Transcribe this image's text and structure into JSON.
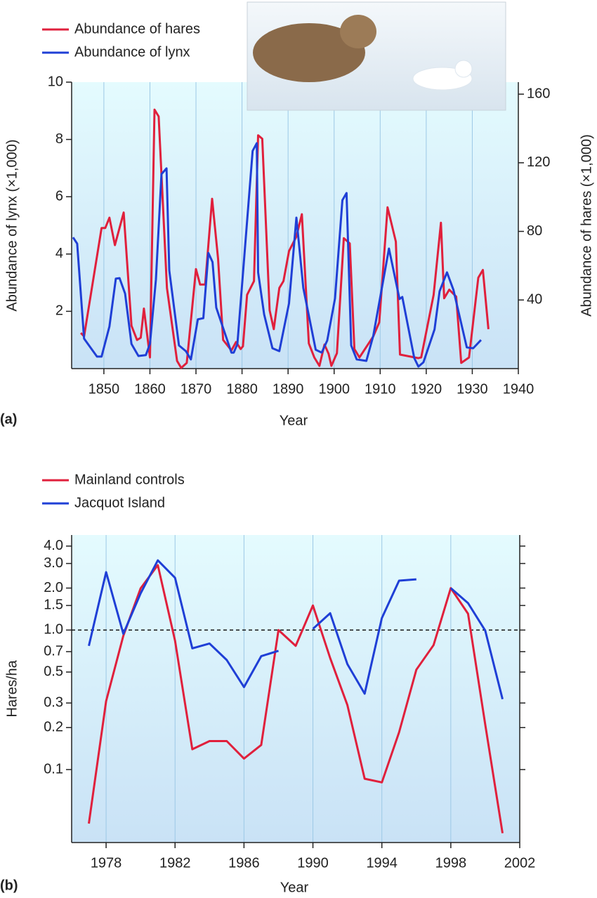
{
  "chart_data": [
    {
      "type": "line",
      "panel_label": "(a)",
      "xlabel": "Year",
      "ylabel": "Abundance of lynx (×1,000)",
      "y2label": "Abundance of hares (×1,000)",
      "xlim": [
        1843,
        1940
      ],
      "xticks": [
        1850,
        1860,
        1870,
        1880,
        1890,
        1900,
        1910,
        1920,
        1930,
        1940
      ],
      "ylim": [
        0,
        10
      ],
      "yticks": [
        2,
        4,
        6,
        8,
        10
      ],
      "y2lim": [
        0,
        167
      ],
      "y2ticks": [
        40,
        80,
        120,
        160
      ],
      "grid": true,
      "series": [
        {
          "name": "Abundance of hares",
          "color": "#e0203c",
          "axis": "y2",
          "x": [
            1845,
            1845.7,
            1849.5,
            1850.3,
            1851.2,
            1852.4,
            1854.3,
            1856,
            1857.2,
            1858,
            1858.7,
            1860,
            1861,
            1861.9,
            1863.7,
            1865.9,
            1866.8,
            1868,
            1870,
            1870.9,
            1872,
            1873.5,
            1874.8,
            1875.9,
            1877.7,
            1878.7,
            1879.7,
            1880.2,
            1881.1,
            1882.6,
            1883.5,
            1884.4,
            1886,
            1886.9,
            1888.1,
            1889,
            1890.2,
            1891.8,
            1893,
            1894.5,
            1895.7,
            1896.8,
            1897.9,
            1898.8,
            1899.4,
            1900.6,
            1902.1,
            1903.4,
            1904.4,
            1905.5,
            1908.5,
            1909.8,
            1911.6,
            1913.4,
            1914.3,
            1918.3,
            1918.9,
            1921.6,
            1923.2,
            1923.9,
            1925,
            1926.5,
            1927.6,
            1929.3,
            1931.3,
            1932.3,
            1933.5
          ],
          "values": [
            20.8,
            18.8,
            82,
            82,
            88,
            72,
            91,
            25,
            16.7,
            18,
            35,
            6.5,
            151,
            147,
            47,
            4.5,
            0.4,
            3.3,
            58,
            49,
            49,
            99,
            64,
            16.7,
            10.6,
            15.5,
            11.4,
            13,
            43,
            51,
            136,
            134,
            34,
            23,
            47,
            51,
            68.5,
            77,
            90,
            14.7,
            6.5,
            1.6,
            14,
            8.6,
            1.6,
            9,
            76,
            73,
            11.4,
            6.5,
            18.8,
            27,
            94,
            74,
            8.2,
            6.1,
            6.5,
            43,
            85,
            41,
            46,
            42,
            3.3,
            6.5,
            53,
            57.5,
            23
          ]
        },
        {
          "name": "Abundance of lynx",
          "color": "#1f3fd6",
          "x": [
            1843.3,
            1844.2,
            1845.7,
            1848.5,
            1849.5,
            1851.2,
            1852.6,
            1853.4,
            1854.6,
            1856,
            1857.5,
            1859.1,
            1860,
            1861.3,
            1862.5,
            1863.6,
            1864.2,
            1866.3,
            1867.8,
            1868.9,
            1870.4,
            1871.6,
            1872.7,
            1873.6,
            1874.4,
            1877.7,
            1878.2,
            1879,
            1882.3,
            1883.2,
            1883.5,
            1884.8,
            1886.6,
            1888.1,
            1890.2,
            1891.8,
            1893.3,
            1896,
            1897.3,
            1898.5,
            1900.2,
            1901.8,
            1902.7,
            1903.7,
            1904.9,
            1907,
            1908.5,
            1911.9,
            1914.2,
            1914.8,
            1917.4,
            1918.3,
            1919.4,
            1921.8,
            1922.9,
            1924.5,
            1925.9,
            1928.8,
            1930.2,
            1931.9
          ],
          "values": [
            4.58,
            4.36,
            1.05,
            0.42,
            0.42,
            1.47,
            3.14,
            3.16,
            2.62,
            0.86,
            0.44,
            0.47,
            0.86,
            3.11,
            6.79,
            6.99,
            3.43,
            0.81,
            0.61,
            0.32,
            1.72,
            1.76,
            4.04,
            3.72,
            2.13,
            0.56,
            0.56,
            0.86,
            7.6,
            7.87,
            3.36,
            1.89,
            0.71,
            0.61,
            2.28,
            5.27,
            2.82,
            0.66,
            0.56,
            0.98,
            2.45,
            5.88,
            6.13,
            0.81,
            0.32,
            0.27,
            1.15,
            4.19,
            2.43,
            2.5,
            0.37,
            0.07,
            0.22,
            1.37,
            2.7,
            3.36,
            2.75,
            0.74,
            0.71,
            1.0
          ]
        }
      ]
    },
    {
      "type": "line",
      "panel_label": "(b)",
      "xlabel": "Year",
      "ylabel": "Hares/ha",
      "yscale": "log",
      "reference_line": 1,
      "xlim": [
        1976,
        2002
      ],
      "xticks": [
        1978,
        1982,
        1986,
        1990,
        1994,
        1998,
        2002
      ],
      "ylim": [
        0.03,
        4.8
      ],
      "yticks": [
        0.1,
        0.2,
        0.3,
        0.5,
        0.7,
        {
          "value": 1,
          "label": "1.0"
        },
        1.5,
        {
          "value": 2,
          "label": "2.0"
        },
        {
          "value": 3,
          "label": "3.0"
        },
        {
          "value": 4,
          "label": "4.0"
        }
      ],
      "grid": true,
      "x": [
        1977,
        1978,
        1979,
        1980,
        1981,
        1982,
        1983,
        1984,
        1985,
        1986,
        1987,
        1988,
        1989,
        1990,
        1991,
        1992,
        1993,
        1994,
        1995,
        1996,
        1997,
        1998,
        1999,
        2000,
        2001
      ],
      "series": [
        {
          "name": "Mainland controls",
          "color": "#e0203c",
          "values": [
            0.041,
            0.31,
            0.91,
            1.99,
            2.92,
            0.84,
            0.14,
            0.16,
            0.16,
            0.12,
            0.15,
            1.0,
            0.77,
            1.5,
            0.63,
            0.29,
            0.086,
            0.081,
            0.185,
            0.52,
            0.78,
            2.0,
            1.31,
            0.21,
            0.035
          ]
        },
        {
          "name": "Jacquot Island",
          "color": "#1f3fd6",
          "values": [
            0.77,
            2.6,
            0.94,
            1.83,
            3.16,
            2.37,
            0.74,
            0.8,
            0.61,
            0.39,
            0.65,
            0.71,
            null,
            1.02,
            1.32,
            0.57,
            0.35,
            1.22,
            2.26,
            2.31,
            null,
            2.0,
            1.56,
            0.99,
            0.32
          ]
        }
      ]
    }
  ]
}
